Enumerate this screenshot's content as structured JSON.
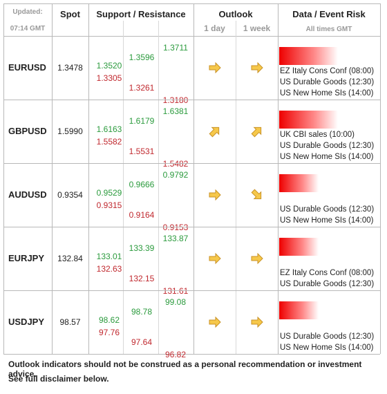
{
  "header": {
    "updated_label": "Updated:",
    "updated_time": "07:14 GMT",
    "spot": "Spot",
    "support_resistance": "Support / Resistance",
    "outlook": "Outlook",
    "outlook_day": "1 day",
    "outlook_week": "1 week",
    "data_event_risk": "Data / Event Risk",
    "times_note": "All times GMT"
  },
  "rows": [
    {
      "pair": "EURUSD",
      "spot": "1.3478",
      "levels": [
        {
          "resistance": "1.3520",
          "support": "1.3305"
        },
        {
          "resistance": "1.3596",
          "support": "1.3261"
        },
        {
          "resistance": "1.3711",
          "support": "1.3180"
        }
      ],
      "events": [
        "EZ Italy Cons Conf (08:00)",
        "US Durable Goods (12:30)",
        "US New Home SIs (14:00)"
      ]
    },
    {
      "pair": "GBPUSD",
      "spot": "1.5990",
      "levels": [
        {
          "resistance": "1.6163",
          "support": "1.5582"
        },
        {
          "resistance": "1.6179",
          "support": "1.5531"
        },
        {
          "resistance": "1.6381",
          "support": "1.5482"
        }
      ],
      "events": [
        "UK CBI sales (10:00)",
        "US Durable Goods (12:30)",
        "US New Home SIs (14:00)"
      ]
    },
    {
      "pair": "AUDUSD",
      "spot": "0.9354",
      "levels": [
        {
          "resistance": "0.9529",
          "support": "0.9315"
        },
        {
          "resistance": "0.9666",
          "support": "0.9164"
        },
        {
          "resistance": "0.9792",
          "support": "0.9153"
        }
      ],
      "events": [
        "US Durable Goods (12:30)",
        "US New Home SIs (14:00)"
      ]
    },
    {
      "pair": "EURJPY",
      "spot": "132.84",
      "levels": [
        {
          "resistance": "133.01",
          "support": "132.63"
        },
        {
          "resistance": "133.39",
          "support": "132.15"
        },
        {
          "resistance": "133.87",
          "support": "131.61"
        }
      ],
      "events": [
        "EZ Italy Cons Conf (08:00)",
        "US Durable Goods (12:30)"
      ]
    },
    {
      "pair": "USDJPY",
      "spot": "98.57",
      "levels": [
        {
          "resistance": "98.62",
          "support": "97.76"
        },
        {
          "resistance": "98.78",
          "support": "97.64"
        },
        {
          "resistance": "99.08",
          "support": "96.82"
        }
      ],
      "events": [
        "US Durable Goods (12:30)",
        "US New Home SIs (14:00)"
      ]
    }
  ],
  "footer": [
    "Outlook indicators should not be construed as a personal recommendation or investment advice.",
    "See full disclaimer below."
  ]
}
